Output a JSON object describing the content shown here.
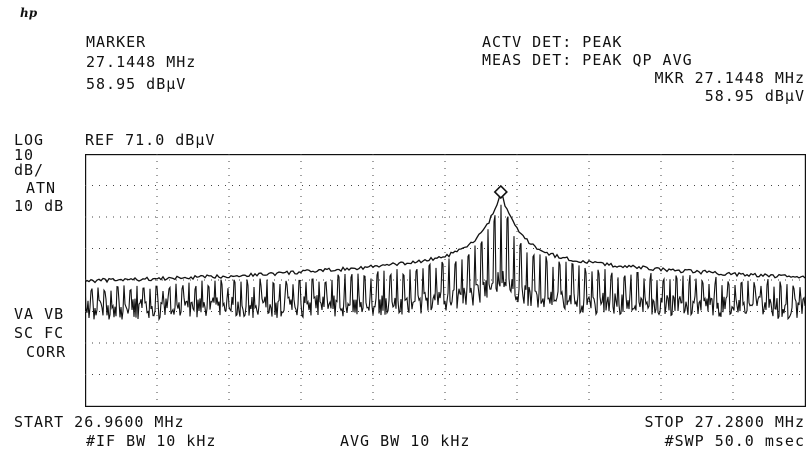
{
  "logo": "hp",
  "marker": {
    "title": "MARKER",
    "freq": "27.1448 MHz",
    "level": "58.95 dBµV"
  },
  "detector": {
    "actv": "ACTV DET: PEAK",
    "meas": "MEAS DET: PEAK QP AVG",
    "mkr_freq": "MKR 27.1448 MHz",
    "mkr_level": "58.95 dBµV"
  },
  "scale": {
    "log": "LOG",
    "per_div": "10",
    "unit": "dB/",
    "atn_label": "ATN",
    "atn_value": "10 dB",
    "ref": "REF 71.0 dBµV"
  },
  "side_labels": {
    "line1": "VA VB",
    "line2": "SC FC",
    "line3": "CORR"
  },
  "footer": {
    "start": "START 26.9600 MHz",
    "stop": "STOP 27.2800 MHz",
    "if_bw": "#IF BW 10 kHz",
    "avg_bw": "AVG BW 10 kHz",
    "sweep": "#SWP 50.0 msec"
  },
  "chart_data": {
    "type": "line",
    "x_start_mhz": 26.96,
    "x_stop_mhz": 27.28,
    "ref_level_dbuv": 71.0,
    "db_per_div": 10,
    "divisions_y": 8,
    "divisions_x": 10,
    "grid": "dotted",
    "marker": {
      "freq_mhz": 27.1448,
      "level_dbuv": 58.95
    },
    "series": [
      {
        "values": "envelope (peak hold) ~ 29-31 dBµV at edges rising to 58.95 dBµV at 27.1448 MHz"
      },
      {
        "values": "comb of spectral lines at ~2.9 kHz spacing with noise floor ~ 20-25 dBµV"
      }
    ]
  }
}
